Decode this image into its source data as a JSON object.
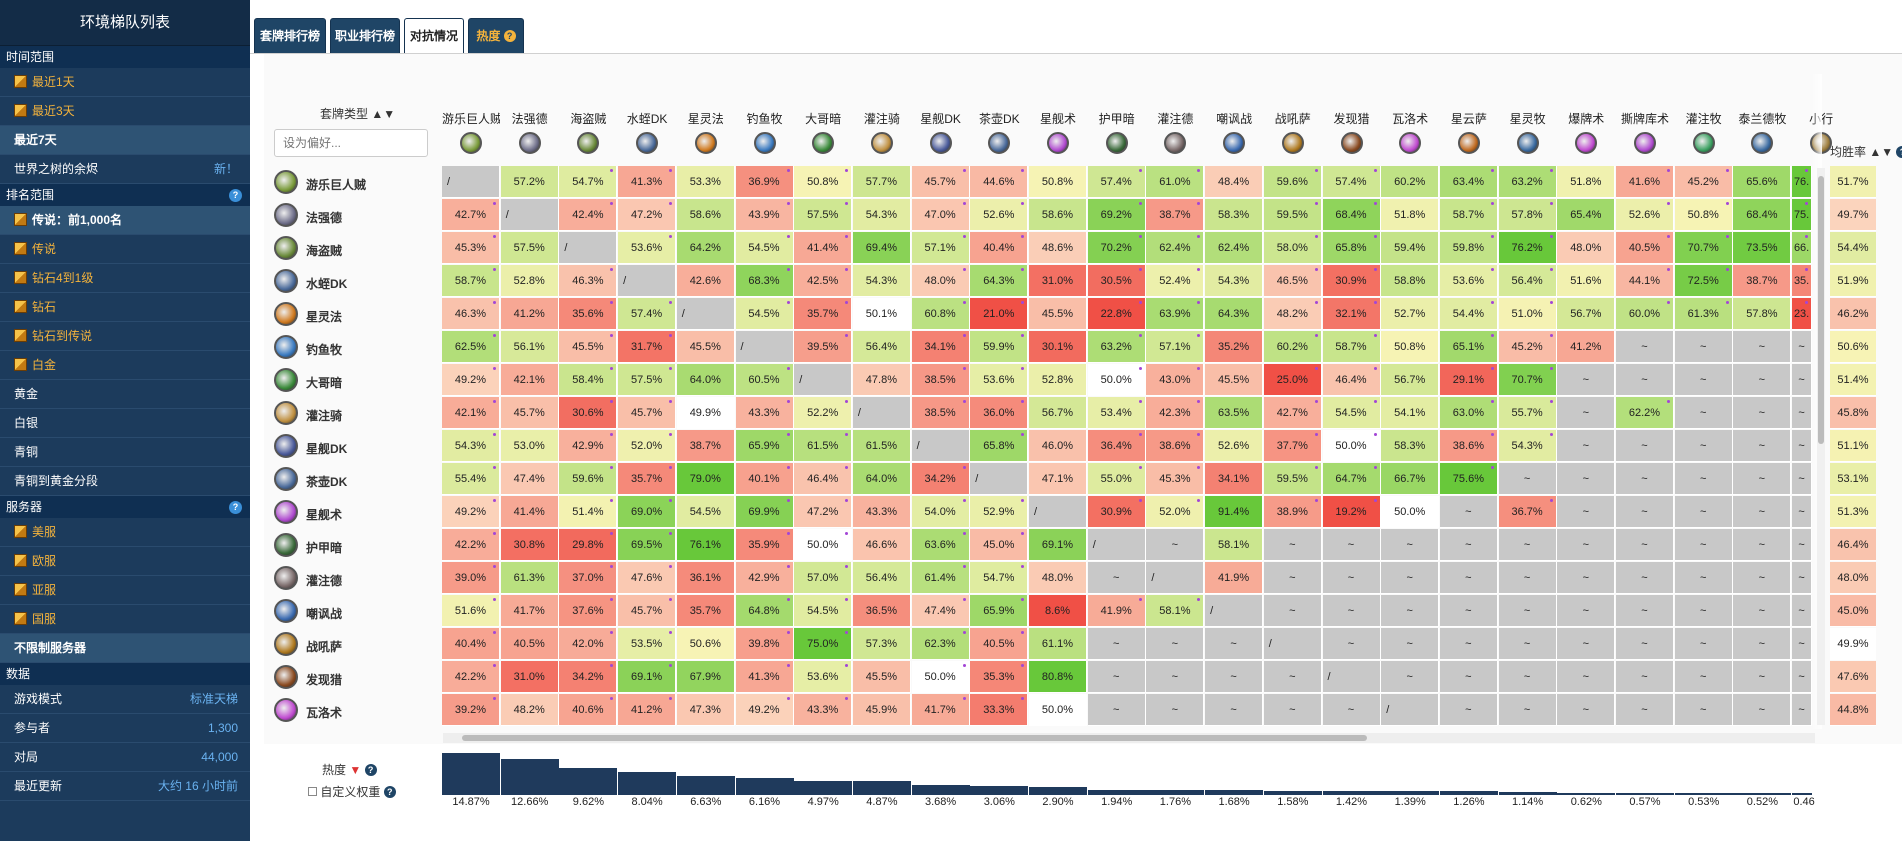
{
  "sidebar": {
    "title": "环境梯队列表",
    "time_section": "时间范围",
    "time_items": [
      "最近1天",
      "最近3天",
      "最近7天",
      "世界之树的余烬"
    ],
    "time_badge": "新！",
    "rank_section": "排名范围",
    "rank_items": [
      "传说：前1,000名",
      "传说",
      "钻石4到1级",
      "钻石",
      "钻石到传说",
      "白金",
      "黄金",
      "白银",
      "青铜",
      "青铜到黄金分段"
    ],
    "server_section": "服务器",
    "server_items": [
      "美服",
      "欧服",
      "亚服",
      "国服",
      "不限制服务器"
    ],
    "data_section": "数据",
    "data_rows": [
      {
        "label": "游戏模式",
        "value": "标准天梯"
      },
      {
        "label": "参与者",
        "value": "1,300"
      },
      {
        "label": "对局",
        "value": "44,000"
      },
      {
        "label": "最近更新",
        "value": "大约 16 小时前"
      }
    ]
  },
  "tabs": [
    "套牌排行榜",
    "职业排行榜",
    "对抗情况",
    "热度"
  ],
  "matrix": {
    "deck_type_label": "套牌类型",
    "pref_placeholder": "设为偏好...",
    "winrate_label": "均胜率",
    "popularity_label": "热度",
    "custom_weight_label": "自定义权重",
    "columns": [
      "游乐巨人贼",
      "法强德",
      "海盗贼",
      "水蛭DK",
      "星灵法",
      "钓鱼牧",
      "大哥暗",
      "灌注骑",
      "星舰DK",
      "茶壶DK",
      "星舰术",
      "护甲暗",
      "灌注德",
      "嘲讽战",
      "战吼萨",
      "发现猎",
      "瓦洛术",
      "星云萨",
      "星灵牧",
      "爆牌术",
      "撕牌库术",
      "灌注牧",
      "泰兰德牧",
      "小行"
    ],
    "rows": [
      {
        "name": "游乐巨人贼",
        "wr": "51.7%",
        "cells": [
          "/",
          "57.2%",
          "54.7%",
          "41.3%",
          "53.3%",
          "36.9%",
          "50.8%",
          "57.7%",
          "45.7%",
          "44.6%",
          "50.8%",
          "57.4%",
          "61.0%",
          "48.4%",
          "59.6%",
          "57.4%",
          "60.2%",
          "63.4%",
          "63.2%",
          "51.8%",
          "41.6%",
          "45.2%",
          "65.6%",
          "76."
        ]
      },
      {
        "name": "法强德",
        "wr": "49.7%",
        "cells": [
          "42.7%",
          "/",
          "42.4%",
          "47.2%",
          "58.6%",
          "43.9%",
          "57.5%",
          "54.3%",
          "47.0%",
          "52.6%",
          "58.6%",
          "69.2%",
          "38.7%",
          "58.3%",
          "59.5%",
          "68.4%",
          "51.8%",
          "58.7%",
          "57.8%",
          "65.4%",
          "52.6%",
          "50.8%",
          "68.4%",
          "75."
        ]
      },
      {
        "name": "海盗贼",
        "wr": "54.4%",
        "cells": [
          "45.3%",
          "57.5%",
          "/",
          "53.6%",
          "64.2%",
          "54.5%",
          "41.4%",
          "69.4%",
          "57.1%",
          "40.4%",
          "48.6%",
          "70.2%",
          "62.4%",
          "62.4%",
          "58.0%",
          "65.8%",
          "59.4%",
          "59.8%",
          "76.2%",
          "48.0%",
          "40.5%",
          "70.7%",
          "73.5%",
          "66."
        ]
      },
      {
        "name": "水蛭DK",
        "wr": "51.9%",
        "cells": [
          "58.7%",
          "52.8%",
          "46.3%",
          "/",
          "42.6%",
          "68.3%",
          "42.5%",
          "54.3%",
          "48.0%",
          "64.3%",
          "31.0%",
          "30.5%",
          "52.4%",
          "54.3%",
          "46.5%",
          "30.9%",
          "58.8%",
          "53.6%",
          "56.4%",
          "51.6%",
          "44.1%",
          "72.5%",
          "38.7%",
          "35."
        ]
      },
      {
        "name": "星灵法",
        "wr": "46.2%",
        "cells": [
          "46.3%",
          "41.2%",
          "35.6%",
          "57.4%",
          "/",
          "54.5%",
          "35.7%",
          "50.1%",
          "60.8%",
          "21.0%",
          "45.5%",
          "22.8%",
          "63.9%",
          "64.3%",
          "48.2%",
          "32.1%",
          "52.7%",
          "54.4%",
          "51.0%",
          "56.7%",
          "60.0%",
          "61.3%",
          "57.8%",
          "23."
        ]
      },
      {
        "name": "钓鱼牧",
        "wr": "50.6%",
        "cells": [
          "62.5%",
          "56.1%",
          "45.5%",
          "31.7%",
          "45.5%",
          "/",
          "39.5%",
          "56.4%",
          "34.1%",
          "59.9%",
          "30.1%",
          "63.2%",
          "57.1%",
          "35.2%",
          "60.2%",
          "58.7%",
          "50.8%",
          "65.1%",
          "45.2%",
          "41.2%",
          "~",
          "~",
          "~",
          "~"
        ]
      },
      {
        "name": "大哥暗",
        "wr": "51.4%",
        "cells": [
          "49.2%",
          "42.1%",
          "58.4%",
          "57.5%",
          "64.0%",
          "60.5%",
          "/",
          "47.8%",
          "38.5%",
          "53.6%",
          "52.8%",
          "50.0%",
          "43.0%",
          "45.5%",
          "25.0%",
          "46.4%",
          "56.7%",
          "29.1%",
          "70.7%",
          "~",
          "~",
          "~",
          "~",
          "~"
        ]
      },
      {
        "name": "灌注骑",
        "wr": "45.8%",
        "cells": [
          "42.1%",
          "45.7%",
          "30.6%",
          "45.7%",
          "49.9%",
          "43.3%",
          "52.2%",
          "/",
          "38.5%",
          "36.0%",
          "56.7%",
          "53.4%",
          "42.3%",
          "63.5%",
          "42.7%",
          "54.5%",
          "54.1%",
          "63.0%",
          "55.7%",
          "~",
          "62.2%",
          "~",
          "~",
          "~"
        ]
      },
      {
        "name": "星舰DK",
        "wr": "51.1%",
        "cells": [
          "54.3%",
          "53.0%",
          "42.9%",
          "52.0%",
          "38.7%",
          "65.9%",
          "61.5%",
          "61.5%",
          "/",
          "65.8%",
          "46.0%",
          "36.4%",
          "38.6%",
          "52.6%",
          "37.7%",
          "50.0%",
          "58.3%",
          "38.6%",
          "54.3%",
          "~",
          "~",
          "~",
          "~",
          "~"
        ]
      },
      {
        "name": "茶壶DK",
        "wr": "53.1%",
        "cells": [
          "55.4%",
          "47.4%",
          "59.6%",
          "35.7%",
          "79.0%",
          "40.1%",
          "46.4%",
          "64.0%",
          "34.2%",
          "/",
          "47.1%",
          "55.0%",
          "45.3%",
          "34.1%",
          "59.5%",
          "64.7%",
          "66.7%",
          "75.6%",
          "~",
          "~",
          "~",
          "~",
          "~",
          "~"
        ]
      },
      {
        "name": "星舰术",
        "wr": "51.3%",
        "cells": [
          "49.2%",
          "41.4%",
          "51.4%",
          "69.0%",
          "54.5%",
          "69.9%",
          "47.2%",
          "43.3%",
          "54.0%",
          "52.9%",
          "/",
          "30.9%",
          "52.0%",
          "91.4%",
          "38.9%",
          "19.2%",
          "50.0%",
          "~",
          "36.7%",
          "~",
          "~",
          "~",
          "~",
          "~"
        ]
      },
      {
        "name": "护甲暗",
        "wr": "46.4%",
        "cells": [
          "42.2%",
          "30.8%",
          "29.8%",
          "69.5%",
          "76.1%",
          "35.9%",
          "50.0%",
          "46.6%",
          "63.6%",
          "45.0%",
          "69.1%",
          "/",
          "~",
          "58.1%",
          "~",
          "~",
          "~",
          "~",
          "~",
          "~",
          "~",
          "~",
          "~",
          "~"
        ]
      },
      {
        "name": "灌注德",
        "wr": "48.0%",
        "cells": [
          "39.0%",
          "61.3%",
          "37.0%",
          "47.6%",
          "36.1%",
          "42.9%",
          "57.0%",
          "56.4%",
          "61.4%",
          "54.7%",
          "48.0%",
          "~",
          "/",
          "41.9%",
          "~",
          "~",
          "~",
          "~",
          "~",
          "~",
          "~",
          "~",
          "~",
          "~"
        ]
      },
      {
        "name": "嘲讽战",
        "wr": "45.0%",
        "cells": [
          "51.6%",
          "41.7%",
          "37.6%",
          "45.7%",
          "35.7%",
          "64.8%",
          "54.5%",
          "36.5%",
          "47.4%",
          "65.9%",
          "8.6%",
          "41.9%",
          "58.1%",
          "/",
          "~",
          "~",
          "~",
          "~",
          "~",
          "~",
          "~",
          "~",
          "~",
          "~"
        ]
      },
      {
        "name": "战吼萨",
        "wr": "49.9%",
        "cells": [
          "40.4%",
          "40.5%",
          "42.0%",
          "53.5%",
          "50.6%",
          "39.8%",
          "75.0%",
          "57.3%",
          "62.3%",
          "40.5%",
          "61.1%",
          "~",
          "~",
          "~",
          "/",
          "~",
          "~",
          "~",
          "~",
          "~",
          "~",
          "~",
          "~",
          "~"
        ]
      },
      {
        "name": "发现猎",
        "wr": "47.6%",
        "cells": [
          "42.2%",
          "31.0%",
          "34.2%",
          "69.1%",
          "67.9%",
          "41.3%",
          "53.6%",
          "45.5%",
          "50.0%",
          "35.3%",
          "80.8%",
          "~",
          "~",
          "~",
          "~",
          "/",
          "~",
          "~",
          "~",
          "~",
          "~",
          "~",
          "~",
          "~"
        ]
      },
      {
        "name": "瓦洛术",
        "wr": "44.8%",
        "cells": [
          "39.2%",
          "48.2%",
          "40.6%",
          "41.2%",
          "47.3%",
          "49.2%",
          "43.3%",
          "45.9%",
          "41.7%",
          "33.3%",
          "50.0%",
          "~",
          "~",
          "~",
          "~",
          "~",
          "/",
          "~",
          "~",
          "~",
          "~",
          "~",
          "~",
          "~"
        ]
      }
    ],
    "popularity": [
      "14.87%",
      "12.66%",
      "9.62%",
      "8.04%",
      "6.63%",
      "6.16%",
      "4.97%",
      "4.87%",
      "3.68%",
      "3.06%",
      "2.90%",
      "1.94%",
      "1.76%",
      "1.68%",
      "1.58%",
      "1.42%",
      "1.39%",
      "1.26%",
      "1.14%",
      "0.62%",
      "0.57%",
      "0.53%",
      "0.52%",
      "0.46"
    ],
    "popularity_values": [
      14.87,
      12.66,
      9.62,
      8.04,
      6.63,
      6.16,
      4.97,
      4.87,
      3.68,
      3.06,
      2.9,
      1.94,
      1.76,
      1.68,
      1.58,
      1.42,
      1.39,
      1.26,
      1.14,
      0.62,
      0.57,
      0.53,
      0.52,
      0.46
    ]
  },
  "colors": {
    "sidebar_bg": "#1c3b5c",
    "accent_gold": "#f4b33c",
    "win_high": "#6fcf3d",
    "win_low": "#f26a5a",
    "neutral": "#fbfbd0",
    "empty": "#c8c8c8"
  }
}
